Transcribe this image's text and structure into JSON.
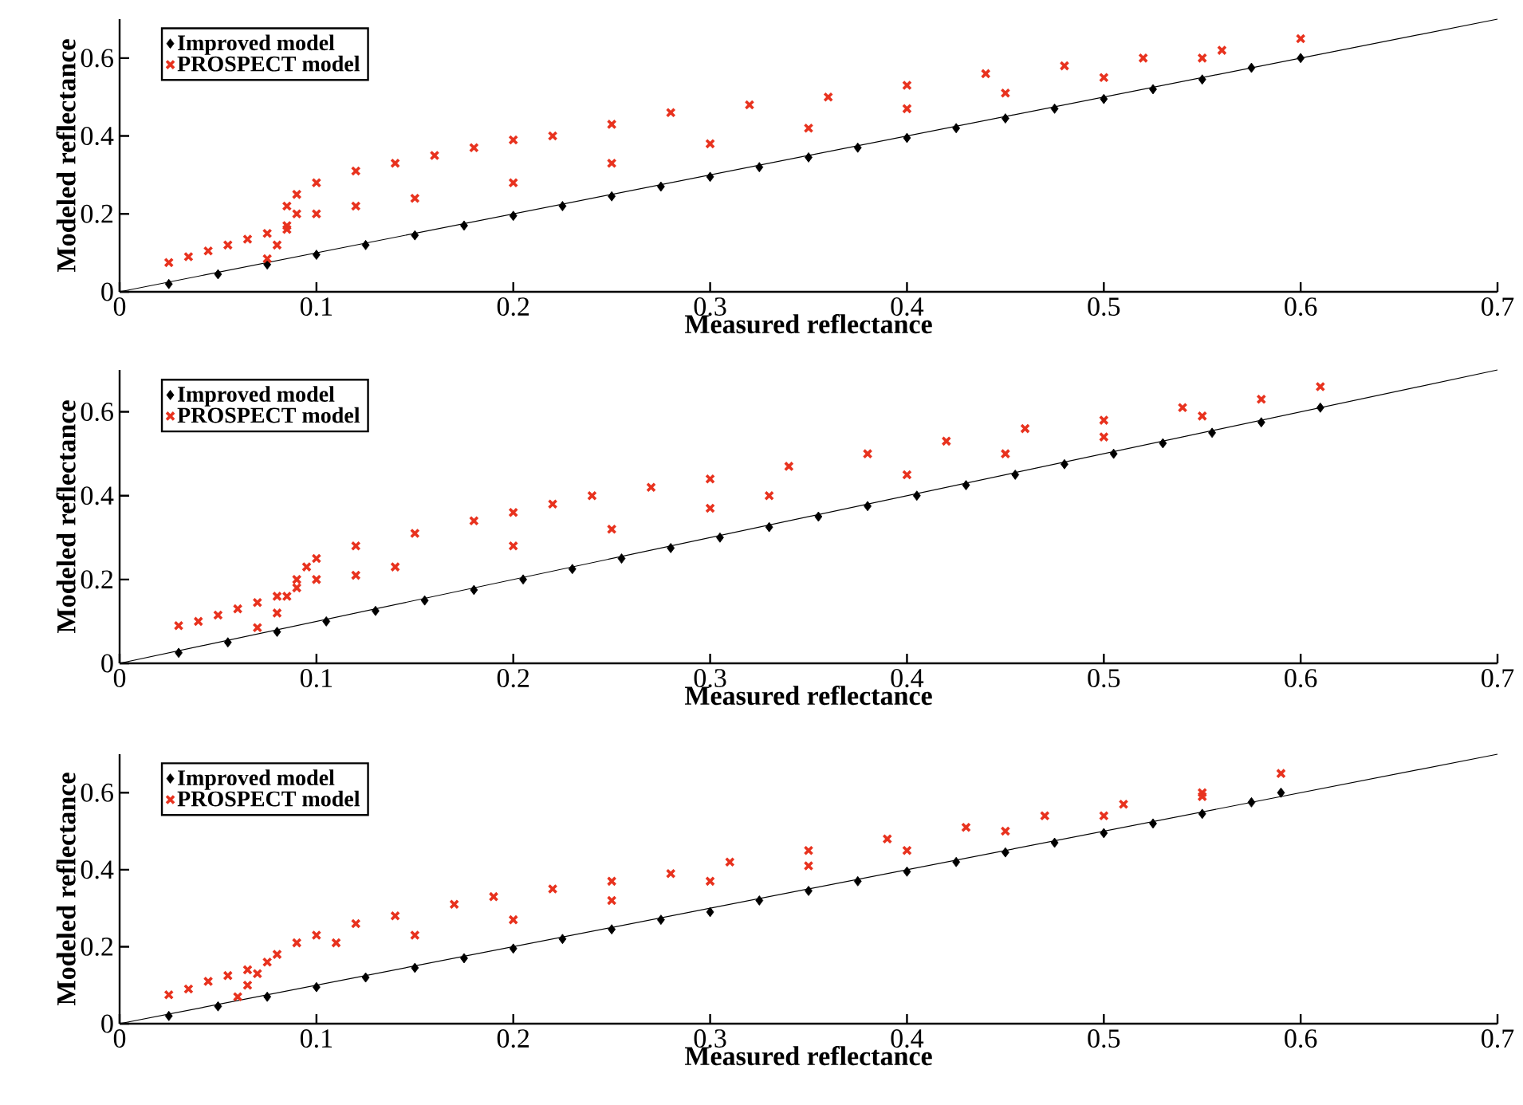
{
  "chart_data": [
    {
      "type": "scatter",
      "xlabel": "Measured reflectance",
      "ylabel": "Modeled reflectance",
      "xlim": [
        0,
        0.7
      ],
      "ylim": [
        0,
        0.7
      ],
      "xticks": [
        0,
        0.1,
        0.2,
        0.3,
        0.4,
        0.5,
        0.6,
        0.7
      ],
      "yticks": [
        0,
        0.2,
        0.4,
        0.6
      ],
      "legend": "top left",
      "series": [
        {
          "name": "Improved model",
          "color": "#000000",
          "marker": "diamond",
          "x": [
            0.025,
            0.05,
            0.075,
            0.1,
            0.125,
            0.15,
            0.175,
            0.2,
            0.225,
            0.25,
            0.275,
            0.3,
            0.325,
            0.35,
            0.375,
            0.4,
            0.425,
            0.45,
            0.475,
            0.5,
            0.525,
            0.55,
            0.575,
            0.6
          ],
          "values": [
            0.02,
            0.045,
            0.07,
            0.095,
            0.12,
            0.145,
            0.17,
            0.195,
            0.22,
            0.245,
            0.27,
            0.295,
            0.32,
            0.345,
            0.37,
            0.395,
            0.42,
            0.445,
            0.47,
            0.495,
            0.52,
            0.545,
            0.575,
            0.6
          ]
        },
        {
          "name": "PROSPECT model",
          "color": "#e8321e",
          "marker": "cross",
          "x": [
            0.025,
            0.035,
            0.045,
            0.055,
            0.065,
            0.075,
            0.085,
            0.075,
            0.08,
            0.085,
            0.09,
            0.085,
            0.09,
            0.1,
            0.12,
            0.14,
            0.16,
            0.18,
            0.2,
            0.22,
            0.25,
            0.28,
            0.32,
            0.36,
            0.4,
            0.44,
            0.48,
            0.52,
            0.56,
            0.1,
            0.12,
            0.15,
            0.2,
            0.25,
            0.3,
            0.35,
            0.4,
            0.45,
            0.5,
            0.55,
            0.6
          ],
          "values": [
            0.075,
            0.09,
            0.105,
            0.12,
            0.135,
            0.15,
            0.17,
            0.085,
            0.12,
            0.16,
            0.2,
            0.22,
            0.25,
            0.28,
            0.31,
            0.33,
            0.35,
            0.37,
            0.39,
            0.4,
            0.43,
            0.46,
            0.48,
            0.5,
            0.53,
            0.56,
            0.58,
            0.6,
            0.62,
            0.2,
            0.22,
            0.24,
            0.28,
            0.33,
            0.38,
            0.42,
            0.47,
            0.51,
            0.55,
            0.6,
            0.65
          ]
        },
        {
          "type": "line",
          "color": "#000000",
          "marker": "none",
          "x": [
            0,
            0.7
          ],
          "values": [
            0,
            0.7
          ]
        }
      ]
    },
    {
      "type": "scatter",
      "xlabel": "Measured reflectance",
      "ylabel": "Modeled reflectance",
      "xlim": [
        0,
        0.7
      ],
      "ylim": [
        0,
        0.7
      ],
      "xticks": [
        0,
        0.1,
        0.2,
        0.3,
        0.4,
        0.5,
        0.6,
        0.7
      ],
      "yticks": [
        0,
        0.2,
        0.4,
        0.6
      ],
      "legend": "top left",
      "series": [
        {
          "name": "Improved model",
          "color": "#000000",
          "marker": "diamond",
          "x": [
            0.03,
            0.055,
            0.08,
            0.105,
            0.13,
            0.155,
            0.18,
            0.205,
            0.23,
            0.255,
            0.28,
            0.305,
            0.33,
            0.355,
            0.38,
            0.405,
            0.43,
            0.455,
            0.48,
            0.505,
            0.53,
            0.555,
            0.58,
            0.61
          ],
          "values": [
            0.025,
            0.05,
            0.075,
            0.1,
            0.125,
            0.15,
            0.175,
            0.2,
            0.225,
            0.25,
            0.275,
            0.3,
            0.325,
            0.35,
            0.375,
            0.4,
            0.425,
            0.45,
            0.475,
            0.5,
            0.525,
            0.55,
            0.575,
            0.61
          ]
        },
        {
          "name": "PROSPECT model",
          "color": "#e8321e",
          "marker": "cross",
          "x": [
            0.03,
            0.04,
            0.05,
            0.06,
            0.07,
            0.08,
            0.09,
            0.07,
            0.08,
            0.085,
            0.09,
            0.095,
            0.1,
            0.12,
            0.15,
            0.18,
            0.2,
            0.22,
            0.24,
            0.27,
            0.3,
            0.34,
            0.38,
            0.42,
            0.46,
            0.5,
            0.54,
            0.58,
            0.1,
            0.12,
            0.14,
            0.2,
            0.25,
            0.3,
            0.33,
            0.4,
            0.45,
            0.5,
            0.55,
            0.61
          ],
          "values": [
            0.09,
            0.1,
            0.115,
            0.13,
            0.145,
            0.16,
            0.18,
            0.085,
            0.12,
            0.16,
            0.2,
            0.23,
            0.25,
            0.28,
            0.31,
            0.34,
            0.36,
            0.38,
            0.4,
            0.42,
            0.44,
            0.47,
            0.5,
            0.53,
            0.56,
            0.58,
            0.61,
            0.63,
            0.2,
            0.21,
            0.23,
            0.28,
            0.32,
            0.37,
            0.4,
            0.45,
            0.5,
            0.54,
            0.59,
            0.66
          ]
        },
        {
          "type": "line",
          "color": "#000000",
          "marker": "none",
          "x": [
            0,
            0.7
          ],
          "values": [
            0,
            0.7
          ]
        }
      ]
    },
    {
      "type": "scatter",
      "xlabel": "Measured reflectance",
      "ylabel": "Modeled reflectance",
      "xlim": [
        0,
        0.7
      ],
      "ylim": [
        0,
        0.7
      ],
      "xticks": [
        0,
        0.1,
        0.2,
        0.3,
        0.4,
        0.5,
        0.6,
        0.7
      ],
      "yticks": [
        0,
        0.2,
        0.4,
        0.6
      ],
      "legend": "top left",
      "series": [
        {
          "name": "Improved model",
          "color": "#000000",
          "marker": "diamond",
          "x": [
            0.025,
            0.05,
            0.075,
            0.1,
            0.125,
            0.15,
            0.175,
            0.2,
            0.225,
            0.25,
            0.275,
            0.3,
            0.325,
            0.35,
            0.375,
            0.4,
            0.425,
            0.45,
            0.475,
            0.5,
            0.525,
            0.55,
            0.575,
            0.59
          ],
          "values": [
            0.02,
            0.045,
            0.07,
            0.095,
            0.12,
            0.145,
            0.17,
            0.195,
            0.22,
            0.245,
            0.27,
            0.29,
            0.32,
            0.345,
            0.37,
            0.395,
            0.42,
            0.445,
            0.47,
            0.495,
            0.52,
            0.545,
            0.575,
            0.6
          ]
        },
        {
          "name": "PROSPECT model",
          "color": "#e8321e",
          "marker": "cross",
          "x": [
            0.025,
            0.035,
            0.045,
            0.055,
            0.065,
            0.06,
            0.065,
            0.07,
            0.075,
            0.08,
            0.09,
            0.1,
            0.12,
            0.14,
            0.17,
            0.19,
            0.22,
            0.25,
            0.28,
            0.31,
            0.35,
            0.39,
            0.43,
            0.47,
            0.51,
            0.55,
            0.11,
            0.15,
            0.2,
            0.25,
            0.3,
            0.35,
            0.4,
            0.45,
            0.5,
            0.55,
            0.59
          ],
          "values": [
            0.075,
            0.09,
            0.11,
            0.125,
            0.14,
            0.07,
            0.1,
            0.13,
            0.16,
            0.18,
            0.21,
            0.23,
            0.26,
            0.28,
            0.31,
            0.33,
            0.35,
            0.37,
            0.39,
            0.42,
            0.45,
            0.48,
            0.51,
            0.54,
            0.57,
            0.6,
            0.21,
            0.23,
            0.27,
            0.32,
            0.37,
            0.41,
            0.45,
            0.5,
            0.54,
            0.59,
            0.65
          ]
        },
        {
          "type": "line",
          "color": "#000000",
          "marker": "none",
          "x": [
            0,
            0.7
          ],
          "values": [
            0,
            0.7
          ]
        }
      ]
    }
  ]
}
